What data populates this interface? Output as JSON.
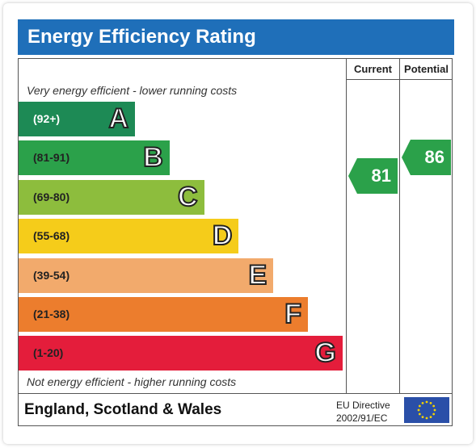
{
  "title": "Energy Efficiency Rating",
  "columns": {
    "current": "Current",
    "potential": "Potential"
  },
  "captions": {
    "top": "Very energy efficient - lower running costs",
    "bottom": "Not energy efficient - higher running costs"
  },
  "bands": [
    {
      "range": "(92+)",
      "letter": "A",
      "color": "#1d8a55"
    },
    {
      "range": "(81-91)",
      "letter": "B",
      "color": "#2ba14a"
    },
    {
      "range": "(69-80)",
      "letter": "C",
      "color": "#8dbd3d"
    },
    {
      "range": "(55-68)",
      "letter": "D",
      "color": "#f5cc1a"
    },
    {
      "range": "(39-54)",
      "letter": "E",
      "color": "#f2aa6c"
    },
    {
      "range": "(21-38)",
      "letter": "F",
      "color": "#ec7d2d"
    },
    {
      "range": "(1-20)",
      "letter": "G",
      "color": "#e41d3b"
    }
  ],
  "ratings": {
    "current": "81",
    "potential": "86",
    "arrow_color": "#2ba14a"
  },
  "footer": {
    "region": "England, Scotland & Wales",
    "directive_line1": "EU Directive",
    "directive_line2": "2002/91/EC"
  },
  "flag_icon": "eu-flag-icon",
  "colors": {
    "header": "#1f6fb9"
  }
}
